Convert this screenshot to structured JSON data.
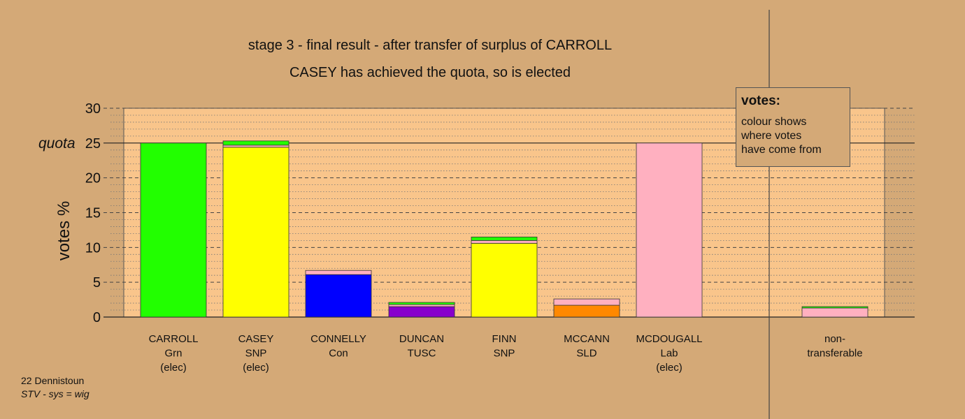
{
  "header": {
    "title": "stage 3 - final result - after transfer of surplus of CARROLL",
    "subtitle": "CASEY has achieved the quota, so is elected"
  },
  "legend": {
    "title": "votes:",
    "lines": [
      "colour shows",
      "where votes",
      "have come from"
    ]
  },
  "footer": {
    "ward": "22 Dennistoun",
    "system": "STV - sys = wig"
  },
  "colors": {
    "background": "#d4a977",
    "plot_area": "#f9c58b",
    "Grn": "#22ff00",
    "SNP": "#ffff00",
    "Con": "#0000ff",
    "TUSC": "#8800cc",
    "SLD": "#ff8800",
    "Lab": "#ffb0c0"
  },
  "chart_data": {
    "type": "bar",
    "stacked": true,
    "ylabel": "votes %",
    "ylim": [
      0,
      30
    ],
    "yticks": [
      0,
      5,
      10,
      15,
      20,
      25,
      30
    ],
    "quota": {
      "label": "quota",
      "value": 25
    },
    "grid": "dashed",
    "categories": [
      {
        "lines": [
          "CARROLL",
          "Grn",
          "(elec)"
        ]
      },
      {
        "lines": [
          "CASEY",
          "SNP",
          "(elec)"
        ]
      },
      {
        "lines": [
          "CONNELLY",
          "Con"
        ]
      },
      {
        "lines": [
          "DUNCAN",
          "TUSC"
        ]
      },
      {
        "lines": [
          "FINN",
          "SNP"
        ]
      },
      {
        "lines": [
          "MCCANN",
          "SLD"
        ]
      },
      {
        "lines": [
          "MCDOUGALL",
          "Lab",
          "(elec)"
        ]
      },
      {
        "lines": [
          "non-",
          "transferable"
        ]
      }
    ],
    "bars": [
      {
        "segments": [
          {
            "from": "Grn",
            "value": 25.0
          }
        ]
      },
      {
        "segments": [
          {
            "from": "SNP",
            "value": 24.4
          },
          {
            "from": "Lab",
            "value": 0.3
          },
          {
            "from": "Grn",
            "value": 0.6
          }
        ]
      },
      {
        "segments": [
          {
            "from": "Con",
            "value": 6.1
          },
          {
            "from": "Lab",
            "value": 0.6
          }
        ]
      },
      {
        "segments": [
          {
            "from": "TUSC",
            "value": 1.5
          },
          {
            "from": "Lab",
            "value": 0.3
          },
          {
            "from": "Grn",
            "value": 0.3
          }
        ]
      },
      {
        "segments": [
          {
            "from": "SNP",
            "value": 10.6
          },
          {
            "from": "Lab",
            "value": 0.4
          },
          {
            "from": "Grn",
            "value": 0.5
          }
        ]
      },
      {
        "segments": [
          {
            "from": "SLD",
            "value": 1.7
          },
          {
            "from": "Lab",
            "value": 0.9
          }
        ]
      },
      {
        "segments": [
          {
            "from": "Lab",
            "value": 25.0
          }
        ]
      },
      {
        "segments": [
          {
            "from": "Lab",
            "value": 1.3
          },
          {
            "from": "Grn",
            "value": 0.2
          }
        ]
      }
    ]
  }
}
